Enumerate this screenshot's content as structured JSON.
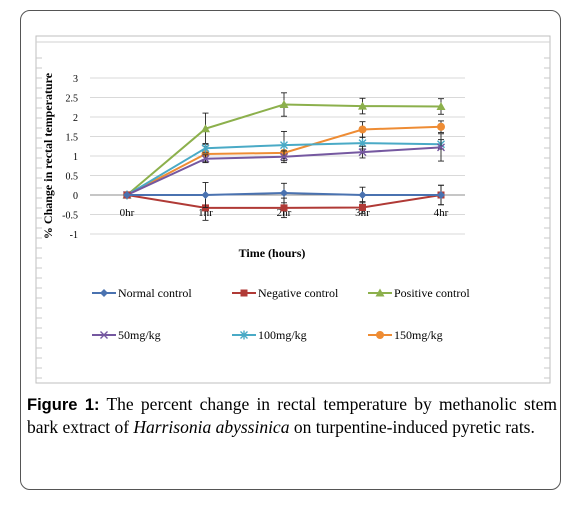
{
  "chart_data": {
    "type": "line",
    "xlabel": "Time (hours)",
    "ylabel": "% Change in rectal temperature",
    "categories": [
      "0hr",
      "1hr",
      "2hr",
      "3hr",
      "4hr"
    ],
    "ylim": [
      -1,
      3
    ],
    "yticks": [
      -1,
      -0.5,
      0,
      0.5,
      1,
      1.5,
      2,
      2.5,
      3
    ],
    "ytick_labels": [
      "-1",
      "-0.5",
      "0",
      "0.5",
      "1",
      "1.5",
      "2",
      "2.5",
      "3"
    ],
    "grid": "horizontal gridlines",
    "legend": "bottom",
    "series": [
      {
        "name": "Normal control",
        "values": [
          0,
          0.0,
          0.05,
          0.0,
          0.0
        ],
        "errors": [
          0,
          0.32,
          0.25,
          0.2,
          0.25
        ],
        "color": "#4a72b0",
        "marker": "diamond"
      },
      {
        "name": "Negative control",
        "values": [
          0,
          -0.33,
          -0.33,
          -0.32,
          0.0
        ],
        "errors": [
          0,
          0.32,
          0.25,
          0.15,
          0.25
        ],
        "color": "#b03a36",
        "marker": "square"
      },
      {
        "name": "Positive control",
        "values": [
          0,
          1.7,
          2.32,
          2.28,
          2.27
        ],
        "errors": [
          0,
          0.4,
          0.3,
          0.2,
          0.2
        ],
        "color": "#8cb04c",
        "marker": "triangle"
      },
      {
        "name": "50mg/kg",
        "values": [
          0,
          0.93,
          0.98,
          1.1,
          1.22
        ],
        "errors": [
          0,
          0.1,
          0.15,
          0.15,
          0.35
        ],
        "color": "#7558a0",
        "marker": "x"
      },
      {
        "name": "100mg/kg",
        "values": [
          0,
          1.2,
          1.28,
          1.33,
          1.3
        ],
        "errors": [
          0,
          0.12,
          0.35,
          0.15,
          0.12
        ],
        "color": "#4aaac6",
        "marker": "star"
      },
      {
        "name": "150mg/kg",
        "values": [
          0,
          1.05,
          1.08,
          1.68,
          1.75
        ],
        "errors": [
          0,
          0.2,
          0.2,
          0.2,
          0.15
        ],
        "color": "#ee8c34",
        "marker": "circle"
      }
    ]
  },
  "caption": {
    "label": "Figure 1:",
    "text_before": " The percent change in rectal temperature by methanolic stem bark extract of ",
    "italic": "Harrisonia abyssinica",
    "text_after": " on turpentine-induced pyretic rats."
  }
}
